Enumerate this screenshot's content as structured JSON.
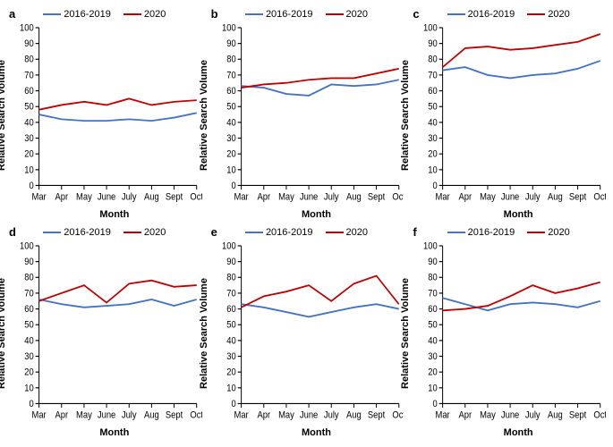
{
  "colors": {
    "series_2016_2019": "#4472c4",
    "series_2020": "#c00000",
    "background": "#ffffff",
    "axis": "#000000"
  },
  "legend": {
    "label_2016_2019": "2016-2019",
    "label_2020": "2020"
  },
  "shared": {
    "xlabel": "Month",
    "ylabel": "Relative Search Volume",
    "xticks": [
      "Mar",
      "Apr",
      "May",
      "June",
      "July",
      "Aug",
      "Sept",
      "Oct"
    ],
    "ylim": [
      0,
      100
    ],
    "ytick_step": 10,
    "label_fontsize": 11,
    "tick_fontsize": 9.5
  },
  "panels": [
    {
      "letter": "a",
      "type": "line",
      "series": {
        "s2016": [
          45,
          42,
          41,
          41,
          42,
          41,
          43,
          46
        ],
        "s2020": [
          48,
          51,
          53,
          51,
          55,
          51,
          53,
          54
        ]
      }
    },
    {
      "letter": "b",
      "type": "line",
      "series": {
        "s2016": [
          63,
          62,
          58,
          57,
          64,
          63,
          64,
          67
        ],
        "s2020": [
          62,
          64,
          65,
          67,
          68,
          68,
          71,
          74
        ]
      }
    },
    {
      "letter": "c",
      "type": "line",
      "series": {
        "s2016": [
          73,
          75,
          70,
          68,
          70,
          71,
          74,
          79
        ],
        "s2020": [
          75,
          87,
          88,
          86,
          87,
          89,
          91,
          96
        ]
      }
    },
    {
      "letter": "d",
      "type": "line",
      "series": {
        "s2016": [
          66,
          63,
          61,
          62,
          63,
          66,
          62,
          66
        ],
        "s2020": [
          65,
          70,
          75,
          64,
          76,
          78,
          74,
          75
        ]
      }
    },
    {
      "letter": "e",
      "type": "line",
      "series": {
        "s2016": [
          63,
          61,
          58,
          55,
          58,
          61,
          63,
          60
        ],
        "s2020": [
          61,
          68,
          71,
          75,
          65,
          76,
          81,
          63
        ]
      }
    },
    {
      "letter": "f",
      "type": "line",
      "series": {
        "s2016": [
          67,
          63,
          59,
          63,
          64,
          63,
          61,
          65
        ],
        "s2020": [
          59,
          60,
          62,
          68,
          75,
          70,
          73,
          77
        ]
      }
    }
  ]
}
